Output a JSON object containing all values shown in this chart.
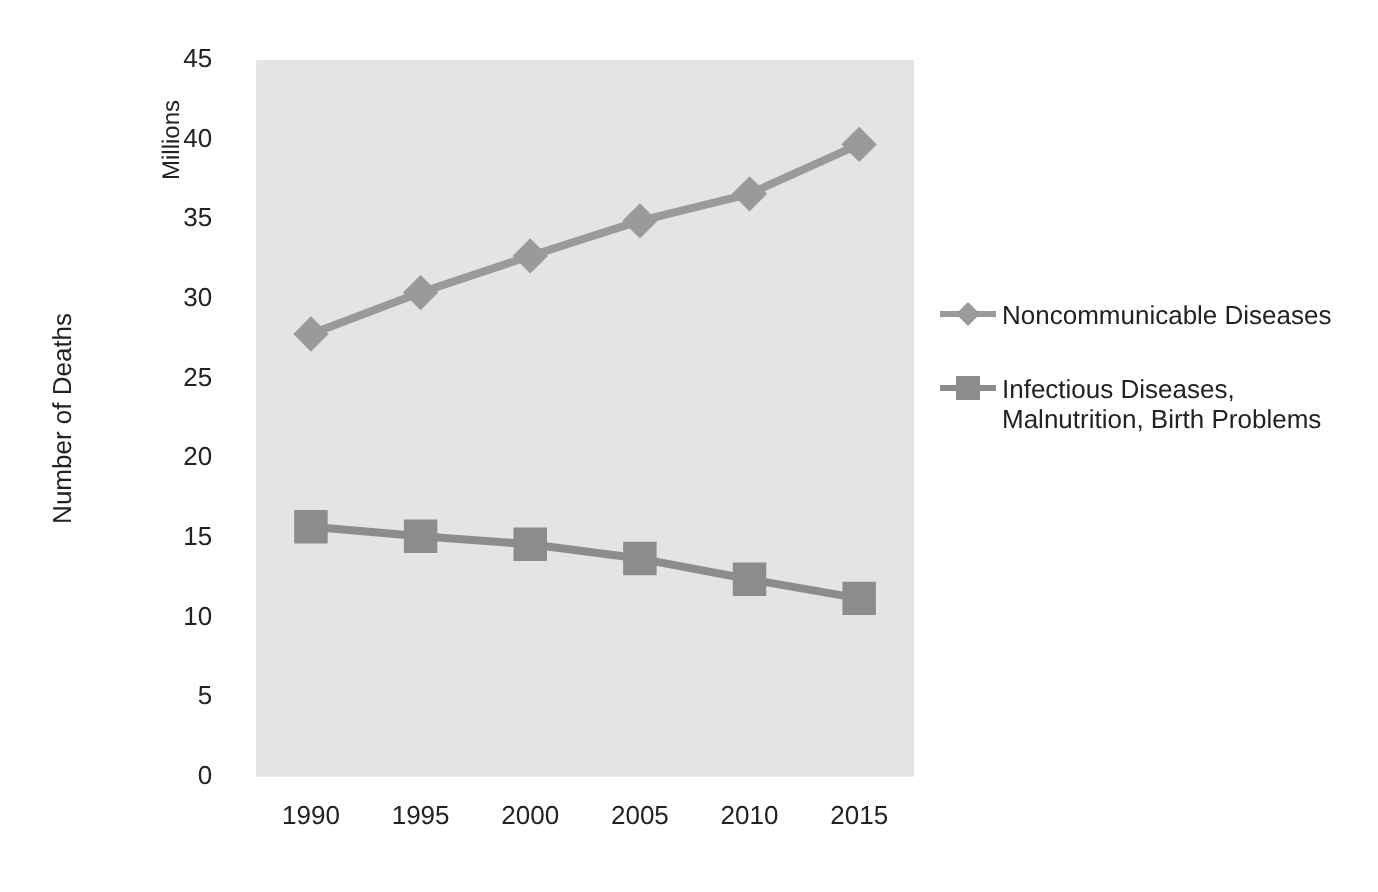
{
  "chart_data": {
    "type": "line",
    "ylabel": "Number of Deaths",
    "annotations": [
      "Millions"
    ],
    "categories": [
      "1990",
      "1995",
      "2000",
      "2005",
      "2010",
      "2015"
    ],
    "series": [
      {
        "name": "Noncommunicable Diseases",
        "color": "#9a9a9a",
        "marker": "diamond",
        "values": [
          27.8,
          30.4,
          32.7,
          34.9,
          36.6,
          39.7
        ]
      },
      {
        "name": "Infectious Diseases, Malnutrition, Birth Problems",
        "color": "#8c8c8c",
        "marker": "square",
        "values": [
          15.7,
          15.1,
          14.6,
          13.7,
          12.4,
          11.2
        ]
      }
    ],
    "ylim": [
      0,
      45
    ],
    "yticks": [
      0,
      5,
      10,
      15,
      20,
      25,
      30,
      35,
      40,
      45
    ],
    "grid": false,
    "legend": "right"
  }
}
